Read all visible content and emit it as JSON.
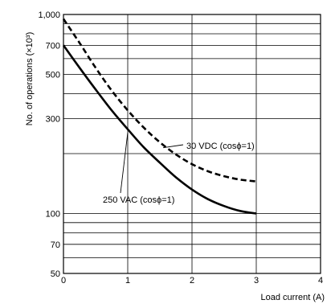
{
  "chart_data": {
    "type": "line",
    "xlabel": "Load current (A)",
    "ylabel": "No. of operations (×10³)",
    "xlim": [
      0,
      4
    ],
    "ylim": [
      50,
      1000
    ],
    "y_scale": "log",
    "grid": true,
    "x_ticks": [
      0,
      1,
      2,
      3,
      4
    ],
    "x_tick_labels": [
      "0",
      "1",
      "2",
      "3",
      "4"
    ],
    "y_ticks": [
      50,
      60,
      70,
      80,
      90,
      100,
      200,
      300,
      400,
      500,
      600,
      700,
      800,
      900,
      1000
    ],
    "y_tick_labels": [
      {
        "value": 50,
        "label": "50"
      },
      {
        "value": 70,
        "label": "70"
      },
      {
        "value": 100,
        "label": "100"
      },
      {
        "value": 300,
        "label": "300"
      },
      {
        "value": 500,
        "label": "500"
      },
      {
        "value": 700,
        "label": "700"
      },
      {
        "value": 1000,
        "label": "1,000"
      }
    ],
    "series": [
      {
        "name": "250 VAC (cosϕ=1)",
        "style": "solid",
        "x": [
          0,
          0.25,
          0.5,
          0.75,
          1.0,
          1.25,
          1.5,
          1.75,
          2.0,
          2.25,
          2.5,
          2.75,
          3.0
        ],
        "y": [
          700,
          540,
          420,
          330,
          265,
          215,
          180,
          152,
          132,
          118,
          109,
          103,
          100
        ]
      },
      {
        "name": "30 VDC (cosϕ=1)",
        "style": "dashed",
        "x": [
          0,
          0.25,
          0.5,
          0.75,
          1.0,
          1.25,
          1.5,
          1.75,
          2.0,
          2.25,
          2.5,
          2.75,
          3.0
        ],
        "y": [
          950,
          720,
          540,
          415,
          330,
          270,
          228,
          198,
          177,
          163,
          154,
          148,
          145
        ]
      }
    ]
  },
  "annotations": {
    "dc_label": "30 VDC (cosϕ=1)",
    "ac_label": "250 VAC (cosϕ=1)"
  }
}
